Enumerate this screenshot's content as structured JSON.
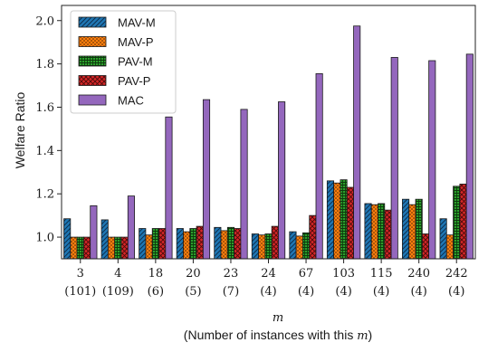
{
  "chart_data": {
    "type": "bar",
    "ylabel": "Welfare Ratio",
    "xlabel_symbol": "m",
    "xlabel_caption_prefix": "(Number of instances with this ",
    "xlabel_caption_var": "m",
    "xlabel_caption_suffix": ")",
    "categories": [
      "3",
      "4",
      "18",
      "20",
      "23",
      "24",
      "67",
      "103",
      "115",
      "240",
      "242"
    ],
    "instance_counts": [
      "(101)",
      "(109)",
      "(6)",
      "(5)",
      "(7)",
      "(4)",
      "(4)",
      "(4)",
      "(4)",
      "(4)",
      "(4)"
    ],
    "ylim": [
      0.9,
      2.07
    ],
    "yticks": [
      "1.0",
      "1.2",
      "1.4",
      "1.6",
      "1.8",
      "2.0"
    ],
    "grid": false,
    "legend_position": "top-left",
    "series": [
      {
        "name": "MAV-M",
        "color": "#1f77b4",
        "pattern": "diagonal-hatch",
        "values": [
          1.085,
          1.08,
          1.04,
          1.04,
          1.045,
          1.015,
          1.025,
          1.26,
          1.155,
          1.175,
          1.085
        ]
      },
      {
        "name": "MAV-P",
        "color": "#ff7f0e",
        "pattern": "dots",
        "values": [
          1.0,
          1.0,
          1.01,
          1.025,
          1.03,
          1.01,
          1.005,
          1.25,
          1.15,
          1.15,
          1.01
        ]
      },
      {
        "name": "PAV-M",
        "color": "#2ca02c",
        "pattern": "grid",
        "values": [
          1.0,
          1.0,
          1.04,
          1.04,
          1.045,
          1.015,
          1.02,
          1.265,
          1.155,
          1.175,
          1.235
        ]
      },
      {
        "name": "PAV-P",
        "color": "#d62728",
        "pattern": "crosshatch",
        "values": [
          1.0,
          1.0,
          1.04,
          1.05,
          1.04,
          1.05,
          1.1,
          1.23,
          1.125,
          1.015,
          1.245
        ]
      },
      {
        "name": "MAC",
        "color": "#9467bd",
        "pattern": "solid",
        "values": [
          1.145,
          1.19,
          1.555,
          1.635,
          1.59,
          1.625,
          1.755,
          1.975,
          1.83,
          1.815,
          1.845
        ]
      }
    ]
  }
}
